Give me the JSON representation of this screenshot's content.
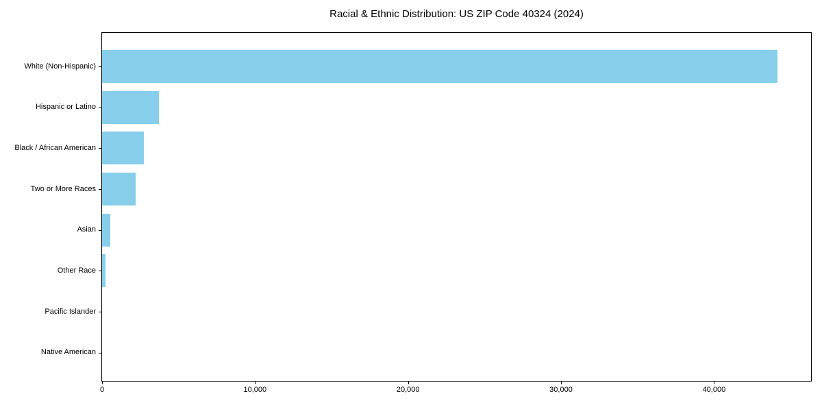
{
  "figure": {
    "background_color": "#ffffff"
  },
  "chart_data": {
    "type": "bar",
    "orientation": "horizontal",
    "title": "Racial & Ethnic Distribution: US ZIP Code 40324 (2024)",
    "categories": [
      "White (Non-Hispanic)",
      "Hispanic or Latino",
      "Black / African American",
      "Two or More Races",
      "Asian",
      "Other Race",
      "Pacific Islander",
      "Native American"
    ],
    "values": [
      44130,
      3700,
      2750,
      2180,
      550,
      200,
      0,
      0
    ],
    "xlabel": "",
    "ylabel": "",
    "xlim": [
      0,
      46340
    ],
    "xticks": [
      0,
      10000,
      20000,
      30000,
      40000
    ],
    "xtick_labels": [
      "0",
      "10,000",
      "20,000",
      "30,000",
      "40,000"
    ],
    "bar_color": "#87CEEB",
    "axis_color": "#000000",
    "text_color": "#000000",
    "grid": false,
    "legend": null
  }
}
